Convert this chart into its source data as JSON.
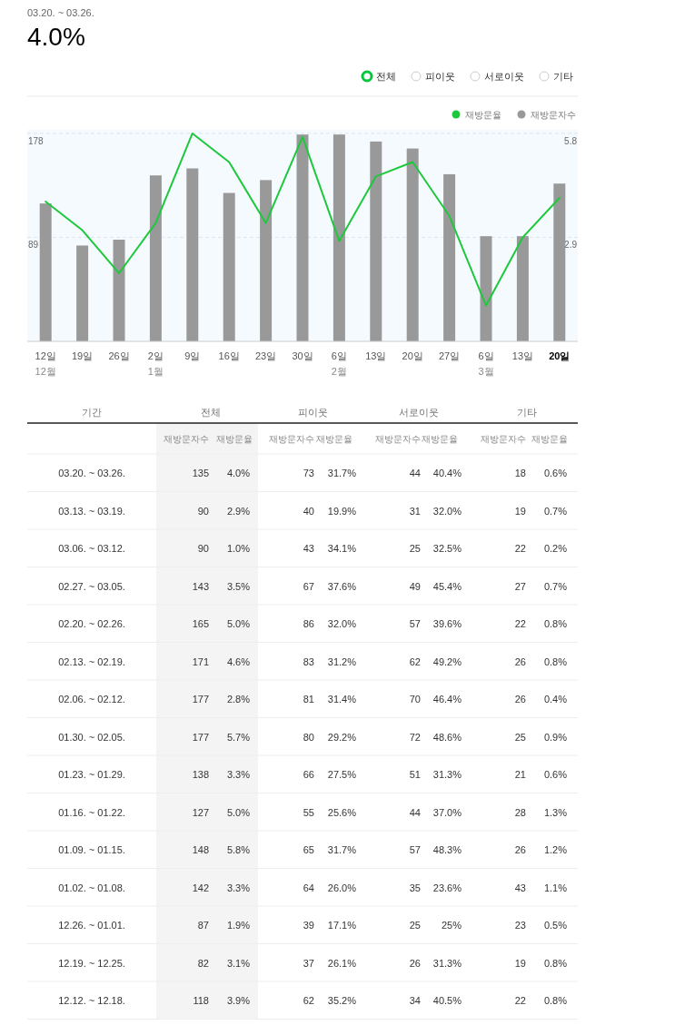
{
  "chart_data": [
    {
      "type": "bar",
      "subtitle": "03.20. ~ 03.26.",
      "title": "4.0%",
      "annotations": [
        "전체",
        "피이웃",
        "서로이웃",
        "기타"
      ],
      "categories": [
        "12일\n12월",
        "19일",
        "26일",
        "2일\n1월",
        "9일",
        "16일",
        "23일",
        "30일",
        "6일\n2월",
        "13일",
        "20일",
        "27일",
        "6일\n3월",
        "13일",
        "20일"
      ],
      "series": [
        {
          "name": "재방문율",
          "type": "line",
          "axis": "y2",
          "color": "#1ec83c",
          "values": [
            3.9,
            3.1,
            1.9,
            3.3,
            5.8,
            5.0,
            3.3,
            5.7,
            2.8,
            4.6,
            5.0,
            3.5,
            1.0,
            2.9,
            4.0
          ]
        },
        {
          "name": "재방문자수",
          "type": "bar",
          "color": "#999999",
          "values": [
            118,
            82,
            87,
            142,
            148,
            127,
            138,
            177,
            177,
            171,
            165,
            143,
            90,
            90,
            135
          ]
        }
      ],
      "ylim": [
        0,
        181
      ],
      "yticks": [
        89,
        178
      ],
      "y2lim": [
        0,
        5.9
      ],
      "y2ticks": [
        2.9,
        5.8
      ],
      "grid": "y",
      "legend": "top right"
    },
    {
      "type": "heatmap",
      "annotations": [
        "기간",
        "전체",
        "피이웃",
        "서로이웃",
        "기타"
      ],
      "categories": [
        "재방문자수",
        "재방문율",
        "재방문자수",
        "재방문율",
        "재방문자수",
        "재방문율",
        "재방문자수",
        "재방문율"
      ],
      "y_categories": [
        "03.20. ~ 03.26.",
        "03.13. ~ 03.19.",
        "03.06. ~ 03.12.",
        "02.27. ~ 03.05.",
        "02.20. ~ 02.26.",
        "02.13. ~ 02.19.",
        "02.06. ~ 02.12.",
        "01.30. ~ 02.05.",
        "01.23. ~ 01.29.",
        "01.16. ~ 01.22.",
        "01.09. ~ 01.15.",
        "01.02. ~ 01.08.",
        "12.26. ~ 01.01.",
        "12.19. ~ 12.25.",
        "12.12. ~ 12.18."
      ],
      "cells": [
        [
          135,
          4.0,
          73,
          31.7,
          44,
          40.4,
          18,
          0.6
        ],
        [
          90,
          2.9,
          40,
          19.9,
          31,
          32.0,
          19,
          0.7
        ],
        [
          90,
          1.0,
          43,
          34.1,
          25,
          32.5,
          22,
          0.2
        ],
        [
          143,
          3.5,
          67,
          37.6,
          49,
          45.4,
          27,
          0.7
        ],
        [
          165,
          5.0,
          86,
          32.0,
          57,
          39.6,
          22,
          0.8
        ],
        [
          171,
          4.6,
          83,
          31.2,
          62,
          49.2,
          26,
          0.8
        ],
        [
          177,
          2.8,
          81,
          31.4,
          70,
          46.4,
          26,
          0.4
        ],
        [
          177,
          5.7,
          80,
          29.2,
          72,
          48.6,
          25,
          0.9
        ],
        [
          138,
          3.3,
          66,
          27.5,
          51,
          31.3,
          21,
          0.6
        ],
        [
          127,
          5.0,
          55,
          25.6,
          44,
          37.0,
          28,
          1.3
        ],
        [
          148,
          5.8,
          65,
          31.7,
          57,
          48.3,
          26,
          1.2
        ],
        [
          142,
          3.3,
          64,
          26.0,
          35,
          23.6,
          43,
          1.1
        ],
        [
          87,
          1.9,
          39,
          17.1,
          25,
          25,
          23,
          0.5
        ],
        [
          82,
          3.1,
          37,
          26.1,
          26,
          31.3,
          19,
          0.8
        ],
        [
          118,
          3.9,
          62,
          35.2,
          34,
          40.5,
          22,
          0.8
        ]
      ],
      "cell_labels": [
        [
          "135",
          "4.0%",
          "73",
          "31.7%",
          "44",
          "40.4%",
          "18",
          "0.6%"
        ],
        [
          "90",
          "2.9%",
          "40",
          "19.9%",
          "31",
          "32.0%",
          "19",
          "0.7%"
        ],
        [
          "90",
          "1.0%",
          "43",
          "34.1%",
          "25",
          "32.5%",
          "22",
          "0.2%"
        ],
        [
          "143",
          "3.5%",
          "67",
          "37.6%",
          "49",
          "45.4%",
          "27",
          "0.7%"
        ],
        [
          "165",
          "5.0%",
          "86",
          "32.0%",
          "57",
          "39.6%",
          "22",
          "0.8%"
        ],
        [
          "171",
          "4.6%",
          "83",
          "31.2%",
          "62",
          "49.2%",
          "26",
          "0.8%"
        ],
        [
          "177",
          "2.8%",
          "81",
          "31.4%",
          "70",
          "46.4%",
          "26",
          "0.4%"
        ],
        [
          "177",
          "5.7%",
          "80",
          "29.2%",
          "72",
          "48.6%",
          "25",
          "0.9%"
        ],
        [
          "138",
          "3.3%",
          "66",
          "27.5%",
          "51",
          "31.3%",
          "21",
          "0.6%"
        ],
        [
          "127",
          "5.0%",
          "55",
          "25.6%",
          "44",
          "37.0%",
          "28",
          "1.3%"
        ],
        [
          "148",
          "5.8%",
          "65",
          "31.7%",
          "57",
          "48.3%",
          "26",
          "1.2%"
        ],
        [
          "142",
          "3.3%",
          "64",
          "26.0%",
          "35",
          "23.6%",
          "43",
          "1.1%"
        ],
        [
          "87",
          "1.9%",
          "39",
          "17.1%",
          "25",
          "25%",
          "23",
          "0.5%"
        ],
        [
          "82",
          "3.1%",
          "37",
          "26.1%",
          "26",
          "31.3%",
          "19",
          "0.8%"
        ],
        [
          "118",
          "3.9%",
          "62",
          "35.2%",
          "34",
          "40.5%",
          "22",
          "0.8%"
        ]
      ]
    }
  ]
}
